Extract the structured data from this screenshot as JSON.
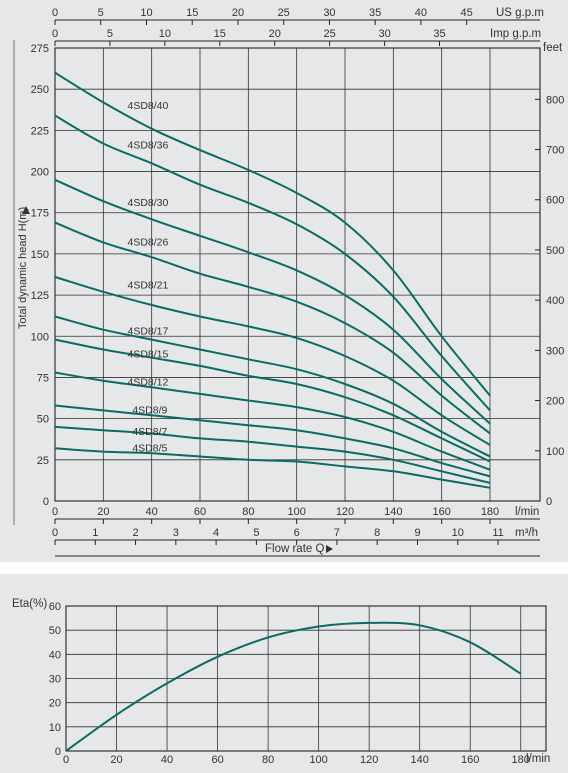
{
  "chart_data": [
    {
      "type": "line",
      "title": "",
      "x_label": "Flow rate Q",
      "y_label": "Total dynamic head H(m)",
      "y_right_label": "feet",
      "x_unit": "l/min",
      "x2_unit": "m³/h",
      "top_axis_us_label": "US g.p.m",
      "top_axis_imp_label": "Imp g.p.m",
      "xlim": [
        0,
        180
      ],
      "ylim": [
        0,
        275
      ],
      "grid": true,
      "x_ticks": [
        0,
        20,
        40,
        60,
        80,
        100,
        120,
        140,
        160,
        180
      ],
      "y_ticks": [
        0,
        25,
        50,
        75,
        100,
        125,
        150,
        175,
        200,
        225,
        250,
        275
      ],
      "y_right_ticks": [
        0,
        100,
        200,
        300,
        400,
        500,
        600,
        700,
        800
      ],
      "x2_ticks": [
        0,
        1,
        2,
        3,
        4,
        5,
        6,
        7,
        8,
        9,
        10,
        11
      ],
      "us_gpm_ticks": [
        0,
        5,
        10,
        15,
        20,
        25,
        30,
        35,
        40,
        45
      ],
      "imp_gpm_ticks": [
        0,
        5,
        10,
        15,
        20,
        25,
        30,
        35
      ],
      "series": [
        {
          "name": "4SD8/40",
          "label_x": 30,
          "label_y": 238,
          "x": [
            0,
            20,
            40,
            60,
            80,
            100,
            120,
            140,
            160,
            180
          ],
          "y": [
            260,
            242,
            226,
            213,
            201,
            187,
            169,
            140,
            100,
            64
          ]
        },
        {
          "name": "4SD8/36",
          "label_x": 30,
          "label_y": 214,
          "x": [
            0,
            20,
            40,
            60,
            80,
            100,
            120,
            140,
            160,
            180
          ],
          "y": [
            234,
            217,
            205,
            192,
            181,
            168,
            150,
            124,
            88,
            55
          ]
        },
        {
          "name": "4SD8/30",
          "label_x": 30,
          "label_y": 179,
          "x": [
            0,
            20,
            40,
            60,
            80,
            100,
            120,
            140,
            160,
            180
          ],
          "y": [
            195,
            182,
            171,
            161,
            151,
            140,
            125,
            104,
            74,
            47
          ]
        },
        {
          "name": "4SD8/26",
          "label_x": 30,
          "label_y": 155,
          "x": [
            0,
            20,
            40,
            60,
            80,
            100,
            120,
            140,
            160,
            180
          ],
          "y": [
            169,
            157,
            148,
            138,
            130,
            121,
            108,
            90,
            64,
            41
          ]
        },
        {
          "name": "4SD8/21",
          "label_x": 30,
          "label_y": 129,
          "x": [
            0,
            20,
            40,
            60,
            80,
            100,
            120,
            140,
            160,
            180
          ],
          "y": [
            136,
            127,
            119,
            112,
            106,
            99,
            88,
            73,
            52,
            34
          ]
        },
        {
          "name": "4SD8/17",
          "label_x": 30,
          "label_y": 101,
          "x": [
            0,
            20,
            40,
            60,
            80,
            100,
            120,
            140,
            160,
            180
          ],
          "y": [
            112,
            104,
            98,
            92,
            86,
            80,
            71,
            59,
            42,
            27
          ]
        },
        {
          "name": "4SD8/15",
          "label_x": 30,
          "label_y": 87,
          "x": [
            0,
            20,
            40,
            60,
            80,
            100,
            120,
            140,
            160,
            180
          ],
          "y": [
            98,
            92,
            87,
            82,
            76,
            71,
            63,
            52,
            38,
            24
          ]
        },
        {
          "name": "4SD8/12",
          "label_x": 30,
          "label_y": 70,
          "x": [
            0,
            20,
            40,
            60,
            80,
            100,
            120,
            140,
            160,
            180
          ],
          "y": [
            78,
            73,
            69,
            65,
            61,
            57,
            51,
            42,
            30,
            19
          ]
        },
        {
          "name": "4SD8/9",
          "label_x": 32,
          "label_y": 53,
          "x": [
            0,
            20,
            40,
            60,
            80,
            100,
            120,
            140,
            160,
            180
          ],
          "y": [
            58,
            55,
            52,
            49,
            46,
            43,
            38,
            32,
            23,
            15
          ]
        },
        {
          "name": "4SD8/7",
          "label_x": 32,
          "label_y": 40,
          "x": [
            0,
            20,
            40,
            60,
            80,
            100,
            120,
            140,
            160,
            180
          ],
          "y": [
            45,
            43,
            41,
            38,
            36,
            33,
            30,
            25,
            18,
            11
          ]
        },
        {
          "name": "4SD8/5",
          "label_x": 32,
          "label_y": 30,
          "x": [
            0,
            20,
            40,
            60,
            80,
            100,
            120,
            140,
            160,
            180
          ],
          "y": [
            32,
            30,
            29,
            27,
            25,
            24,
            21,
            18,
            13,
            8
          ]
        }
      ]
    },
    {
      "type": "line",
      "title": "",
      "y_label": "Eta(%)",
      "x_unit": "l/min",
      "xlim": [
        0,
        190
      ],
      "ylim": [
        0,
        60
      ],
      "grid": true,
      "x_ticks": [
        0,
        20,
        40,
        60,
        80,
        100,
        120,
        140,
        160,
        180
      ],
      "y_ticks": [
        0,
        10,
        20,
        30,
        40,
        50,
        60
      ],
      "series": [
        {
          "x": [
            0,
            20,
            40,
            60,
            80,
            100,
            120,
            140,
            160,
            180
          ],
          "y": [
            0,
            15,
            28,
            39,
            47,
            51.5,
            53,
            52,
            45,
            32
          ]
        }
      ]
    }
  ]
}
